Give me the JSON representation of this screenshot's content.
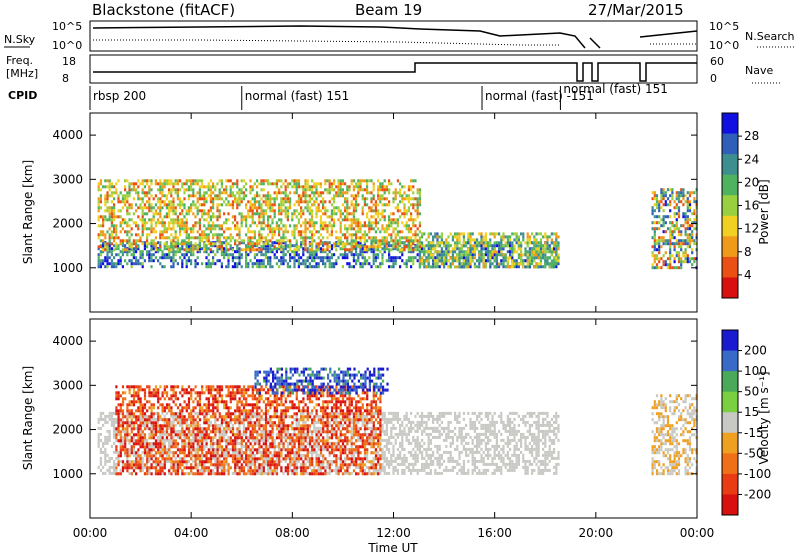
{
  "header": {
    "station": "Blackstone (fitACF)",
    "beam": "Beam 19",
    "date": "27/Mar/2015"
  },
  "strip_labels": {
    "nsky": "N.Sky",
    "nsearch": "N.Search",
    "freq_line1": "Freq.",
    "freq_line2": "[MHz]",
    "nave": "Nave",
    "cpid": "CPID"
  },
  "strip_ticks": {
    "noise_left": [
      "10^5",
      "10^0"
    ],
    "noise_right": [
      "10^5",
      "10^0"
    ],
    "freq_left": [
      "18",
      "8"
    ],
    "freq_right": [
      "60",
      "0"
    ]
  },
  "cpid_segments": [
    {
      "label": "rbsp 200",
      "start_h": 0.0
    },
    {
      "label": "normal (fast) 151",
      "start_h": 6.0
    },
    {
      "label": "normal (fast) -151",
      "start_h": 15.5
    },
    {
      "label": "normal (fast) 151",
      "start_h": 18.6
    }
  ],
  "axes": {
    "ylabel": "Slant Range [km]",
    "xlabel": "Time UT",
    "x_ticks": [
      "00:00",
      "04:00",
      "08:00",
      "12:00",
      "16:00",
      "20:00",
      "00:00"
    ],
    "y_ticks": [
      "1000",
      "2000",
      "3000",
      "4000"
    ]
  },
  "colorbars": {
    "power": {
      "label": "Power [dB]",
      "ticks": [
        "4",
        "8",
        "12",
        "16",
        "20",
        "24",
        "28"
      ],
      "colors": [
        "#1010e0",
        "#2f5fb8",
        "#3d8f8f",
        "#4fb25f",
        "#98d040",
        "#f0d020",
        "#f09a1a",
        "#ea5014",
        "#d81010"
      ]
    },
    "velocity": {
      "label": "Velocity [m s⁻¹]",
      "ticks": [
        "200",
        "100",
        "50",
        "15",
        "-15",
        "-50",
        "-100",
        "-200"
      ],
      "colors": [
        "#1a1ad0",
        "#3a6ac8",
        "#4aaa5a",
        "#7ad040",
        "#c8c8c4",
        "#f0a020",
        "#f07018",
        "#ea3c14",
        "#d81010"
      ]
    }
  },
  "chart_data": [
    {
      "type": "heatmap",
      "title": "",
      "xlabel": "Time UT",
      "ylabel": "Slant Range [km]",
      "x_range_h": [
        0,
        24
      ],
      "ylim": [
        0,
        4500
      ],
      "colorbar": "Power [dB]",
      "clim": [
        0,
        30
      ],
      "regions": [
        {
          "name": "ground scatter band",
          "t_start_h": 0.3,
          "t_end_h": 18.5,
          "range_km": [
            1000,
            1600
          ],
          "power_db": [
            16,
            30
          ]
        },
        {
          "name": "main echo region",
          "t_start_h": 0.3,
          "t_end_h": 13.0,
          "range_km": [
            1400,
            3000
          ],
          "power_db": [
            4,
            20
          ]
        },
        {
          "name": "afternoon echoes",
          "t_start_h": 13.0,
          "t_end_h": 18.5,
          "range_km": [
            1000,
            1800
          ],
          "power_db": [
            8,
            24
          ]
        },
        {
          "name": "late evening echoes",
          "t_start_h": 22.2,
          "t_end_h": 24.0,
          "range_km": [
            1000,
            2800
          ],
          "power_db": [
            4,
            28
          ]
        }
      ]
    },
    {
      "type": "heatmap",
      "title": "",
      "xlabel": "Time UT",
      "ylabel": "Slant Range [km]",
      "x_range_h": [
        0,
        24
      ],
      "ylim": [
        0,
        4500
      ],
      "colorbar": "Velocity [m s⁻¹]",
      "clim": [
        -200,
        200
      ],
      "regions": [
        {
          "name": "ground scatter",
          "t_start_h": 0.3,
          "t_end_h": 18.5,
          "range_km": [
            1000,
            2400
          ],
          "velocity_ms": [
            -15,
            15
          ]
        },
        {
          "name": "negative velocity patches",
          "t_start_h": 1.0,
          "t_end_h": 11.5,
          "range_km": [
            1000,
            3000
          ],
          "velocity_ms": [
            -200,
            -50
          ]
        },
        {
          "name": "positive velocity patch",
          "t_start_h": 6.5,
          "t_end_h": 11.8,
          "range_km": [
            2800,
            3400
          ],
          "velocity_ms": [
            100,
            200
          ]
        },
        {
          "name": "late evening echoes",
          "t_start_h": 22.2,
          "t_end_h": 24.0,
          "range_km": [
            1000,
            2800
          ],
          "velocity_ms": [
            -50,
            15
          ]
        }
      ]
    }
  ]
}
